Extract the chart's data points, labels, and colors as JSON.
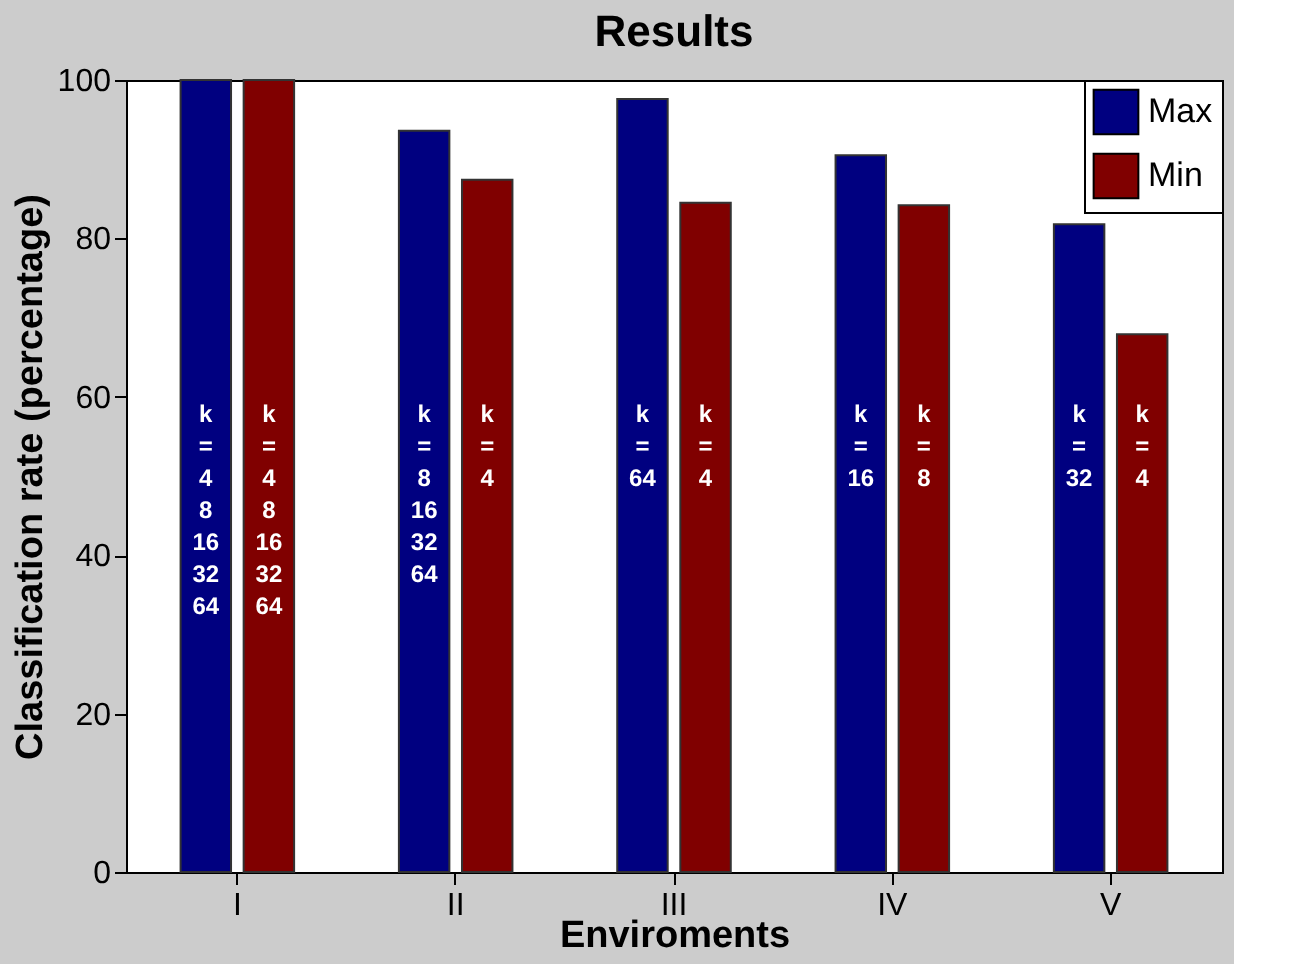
{
  "chart_data": {
    "type": "bar",
    "title": "Results",
    "xlabel": "Enviroments",
    "ylabel": "Classification rate (percentage)",
    "categories": [
      "I",
      "II",
      "III",
      "IV",
      "V"
    ],
    "series": [
      {
        "name": "Max",
        "color": "#000080",
        "values": [
          100,
          93.6,
          97.6,
          90.5,
          81.8
        ]
      },
      {
        "name": "Min",
        "color": "#800000",
        "values": [
          100,
          87.4,
          84.5,
          84.2,
          67.9
        ]
      }
    ],
    "annotations": [
      "k\n=\n4\n8\n16\n32\n64",
      "k\n=\n4\n8\n16\n32\n64",
      "k\n=\n8\n16\n32\n64",
      "k\n=\n4",
      "k\n=\n64",
      "k\n=\n4",
      "k\n=\n16",
      "k\n=\n8",
      "k\n=\n32",
      "k\n=\n4"
    ],
    "ylim": [
      0,
      100
    ],
    "yticks": [
      0,
      20,
      40,
      60,
      80,
      100
    ],
    "grid": false,
    "legend": "top right"
  }
}
